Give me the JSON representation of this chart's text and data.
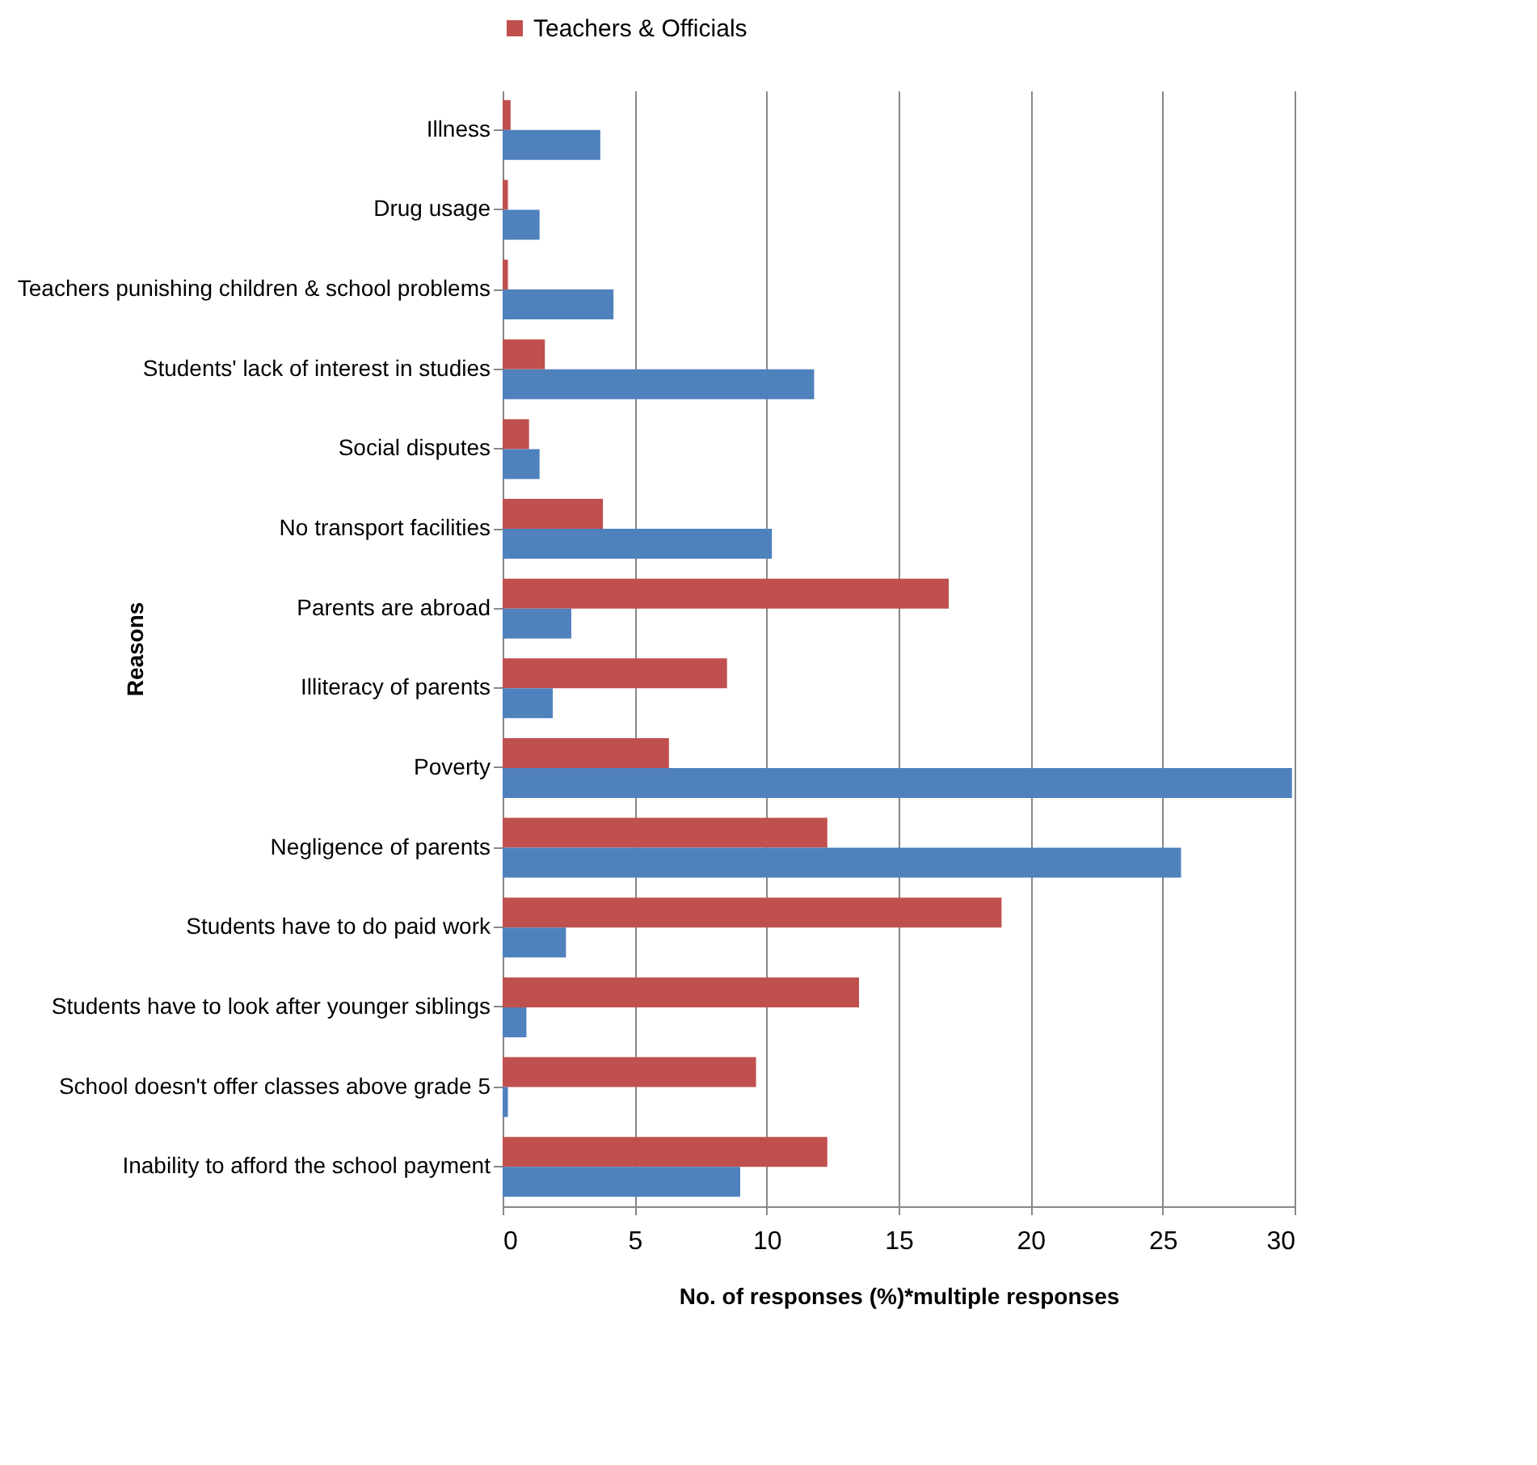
{
  "chart_data": {
    "type": "bar",
    "orientation": "horizontal",
    "xlabel": "No. of responses (%)*multiple responses",
    "ylabel": "Reasons",
    "categories": [
      "Illness",
      "Drug usage",
      "Teachers punishing children & school problems",
      "Students' lack of interest in studies",
      "Social disputes",
      "No transport facilities",
      "Parents are abroad",
      "Illiteracy of parents",
      "Poverty",
      "Negligence of parents",
      "Students have to do paid work",
      "Students have to look after younger siblings",
      "School doesn't offer classes above grade 5",
      "Inability to afford the school payment"
    ],
    "series": [
      {
        "name": "Teachers & Officials",
        "color": "#c0504d",
        "values": [
          0.3,
          0.2,
          0.2,
          1.6,
          1.0,
          3.8,
          16.9,
          8.5,
          6.3,
          12.3,
          18.9,
          13.5,
          9.6,
          12.3
        ]
      },
      {
        "color": "#4f81bd",
        "values": [
          3.7,
          1.4,
          4.2,
          11.8,
          1.4,
          10.2,
          2.6,
          1.9,
          29.9,
          25.7,
          2.4,
          0.9,
          0.2,
          9.0
        ]
      }
    ],
    "xlim": [
      0,
      30
    ],
    "xticks": [
      0,
      5,
      10,
      15,
      20,
      25,
      30
    ],
    "grid": "x",
    "legend": "top"
  }
}
